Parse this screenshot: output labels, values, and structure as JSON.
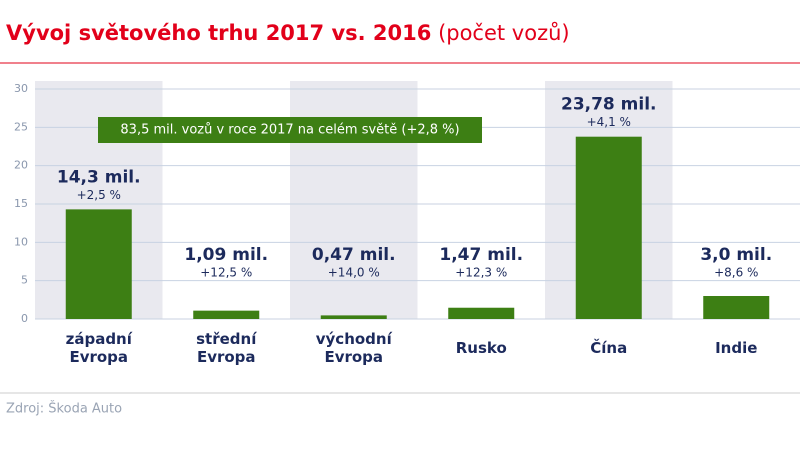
{
  "chart_data": {
    "type": "bar",
    "title": "Vývoj světového trhu 2017 vs. 2016",
    "subtitle": "(počet vozů)",
    "categories": [
      "západní Evropa",
      "střední Evropa",
      "východní Evropa",
      "Rusko",
      "Čína",
      "Indie"
    ],
    "values": [
      14.3,
      1.09,
      0.47,
      1.47,
      23.78,
      3.0
    ],
    "value_labels": [
      "14,3 mil.",
      "1,09 mil.",
      "0,47 mil.",
      "1,47 mil.",
      "23,78 mil.",
      "3,0 mil."
    ],
    "change_labels": [
      "+2,5 %",
      "+12,5 %",
      "+14,0 %",
      "+12,3 %",
      "+4,1 %",
      "+8,6 %"
    ],
    "annotation": "83,5 mil. vozů v roce 2017 na celém světě (+2,8 %)",
    "source": "Zdroj: Škoda Auto",
    "color": "#3d7f14",
    "ylim": [
      0,
      30
    ],
    "yticks": [
      0,
      5,
      10,
      15,
      20,
      25,
      30
    ],
    "grid": true
  }
}
